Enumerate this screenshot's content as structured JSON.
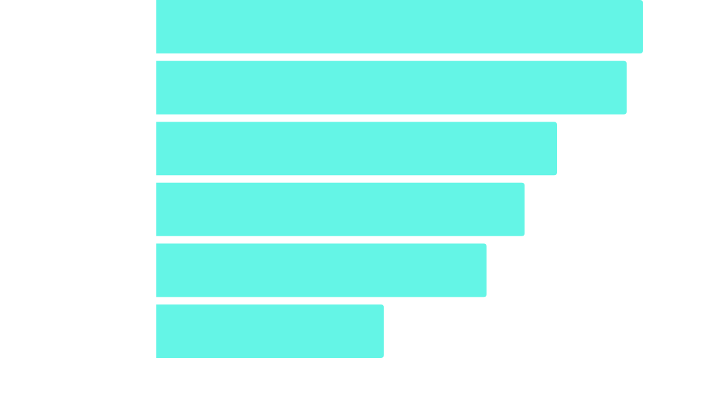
{
  "chart_data": {
    "type": "barh",
    "categories": [
      null,
      null,
      null,
      null,
      null,
      null
    ],
    "values": [
      691,
      668,
      569,
      523,
      469,
      323
    ],
    "color": "#64f5e6"
  }
}
